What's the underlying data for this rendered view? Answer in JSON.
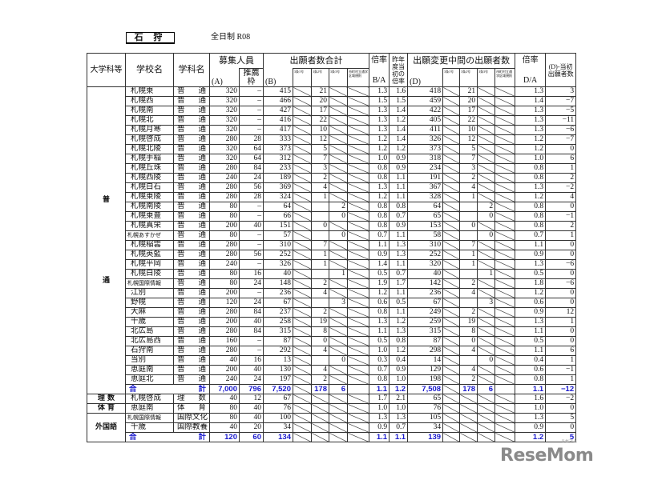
{
  "header": {
    "region": "石 狩",
    "subtitle": "全日制 R08"
  },
  "columns": {
    "category": "大学科等",
    "school": "学校名",
    "dept": "学科名",
    "recruit": "募集人員",
    "a": "(A)",
    "suisen": "推薦枠",
    "applicants_total": "出願者数合計",
    "b": "(B)",
    "sub": [
      "3条1号",
      "3条2号",
      "3条3号",
      "市町村立通学区域規則"
    ],
    "ratio": "倍率",
    "ba": "B/A",
    "prev_ratio": "昨年度当初の倍率",
    "interim": "出願変更中間の出願者数",
    "d": "(D)",
    "ratio2": "倍率",
    "da": "D/A",
    "diff": "(D)-当初出願者数"
  },
  "groups": {
    "futsu_1": "普",
    "futsu_2": "通",
    "risu": "理 数",
    "taiiku": "体 育",
    "gaikokugo": "外国語"
  },
  "total_label": {
    "left": "合",
    "right": "計"
  },
  "futsu_rows": [
    {
      "school": "札幌東",
      "dept": [
        "普",
        "通"
      ],
      "a": "320",
      "s": "–",
      "b": "415",
      "bs": [
        null,
        "21",
        null,
        null
      ],
      "ba": "1.3",
      "prev": "1.6",
      "d": "418",
      "ds": [
        null,
        "21",
        null,
        null
      ],
      "da": "1.3",
      "diff": "3"
    },
    {
      "school": "札幌西",
      "dept": [
        "普",
        "通"
      ],
      "a": "320",
      "s": "–",
      "b": "466",
      "bs": [
        null,
        "20",
        null,
        null
      ],
      "ba": "1.5",
      "prev": "1.5",
      "d": "459",
      "ds": [
        null,
        "20",
        null,
        null
      ],
      "da": "1.4",
      "diff": "−7"
    },
    {
      "school": "札幌南",
      "dept": [
        "普",
        "通"
      ],
      "a": "320",
      "s": "–",
      "b": "427",
      "bs": [
        null,
        "17",
        null,
        null
      ],
      "ba": "1.3",
      "prev": "1.4",
      "d": "422",
      "ds": [
        null,
        "17",
        null,
        null
      ],
      "da": "1.3",
      "diff": "−5"
    },
    {
      "school": "札幌北",
      "dept": [
        "普",
        "通"
      ],
      "a": "320",
      "s": "–",
      "b": "416",
      "bs": [
        null,
        "22",
        null,
        null
      ],
      "ba": "1.3",
      "prev": "1.2",
      "d": "405",
      "ds": [
        null,
        "22",
        null,
        null
      ],
      "da": "1.3",
      "diff": "−11"
    },
    {
      "school": "札幌月寒",
      "dept": [
        "普",
        "通"
      ],
      "a": "320",
      "s": "–",
      "b": "417",
      "bs": [
        null,
        "10",
        null,
        null
      ],
      "ba": "1.3",
      "prev": "1.4",
      "d": "411",
      "ds": [
        null,
        "10",
        null,
        null
      ],
      "da": "1.3",
      "diff": "−6"
    },
    {
      "school": "札幌啓成",
      "dept": [
        "普",
        "通"
      ],
      "a": "280",
      "s": "28",
      "b": "333",
      "bs": [
        null,
        "12",
        null,
        null
      ],
      "ba": "1.2",
      "prev": "1.4",
      "d": "326",
      "ds": [
        null,
        "12",
        null,
        null
      ],
      "da": "1.2",
      "diff": "−7"
    },
    {
      "school": "札幌北陵",
      "dept": [
        "普",
        "通"
      ],
      "a": "320",
      "s": "64",
      "b": "373",
      "bs": [
        null,
        "5",
        null,
        null
      ],
      "ba": "1.2",
      "prev": "1.2",
      "d": "373",
      "ds": [
        null,
        "5",
        null,
        null
      ],
      "da": "1.2",
      "diff": "0"
    },
    {
      "school": "札幌手稲",
      "dept": [
        "普",
        "通"
      ],
      "a": "320",
      "s": "64",
      "b": "312",
      "bs": [
        null,
        "7",
        null,
        null
      ],
      "ba": "1.0",
      "prev": "0.9",
      "d": "318",
      "ds": [
        null,
        "7",
        null,
        null
      ],
      "da": "1.0",
      "diff": "6"
    },
    {
      "school": "札幌丘珠",
      "dept": [
        "普",
        "通"
      ],
      "a": "280",
      "s": "84",
      "b": "233",
      "bs": [
        null,
        "3",
        null,
        null
      ],
      "ba": "0.8",
      "prev": "0.9",
      "d": "234",
      "ds": [
        null,
        "3",
        null,
        null
      ],
      "da": "0.8",
      "diff": "1"
    },
    {
      "school": "札幌西陵",
      "dept": [
        "普",
        "通"
      ],
      "a": "240",
      "s": "24",
      "b": "189",
      "bs": [
        null,
        "2",
        null,
        null
      ],
      "ba": "0.8",
      "prev": "1.1",
      "d": "191",
      "ds": [
        null,
        "2",
        null,
        null
      ],
      "da": "0.8",
      "diff": "2"
    },
    {
      "school": "札幌白石",
      "dept": [
        "普",
        "通"
      ],
      "a": "280",
      "s": "56",
      "b": "369",
      "bs": [
        null,
        "4",
        null,
        null
      ],
      "ba": "1.3",
      "prev": "1.1",
      "d": "367",
      "ds": [
        null,
        "4",
        null,
        null
      ],
      "da": "1.3",
      "diff": "−2"
    },
    {
      "school": "札幌東陵",
      "dept": [
        "普",
        "通"
      ],
      "a": "280",
      "s": "28",
      "b": "324",
      "bs": [
        null,
        "1",
        null,
        null
      ],
      "ba": "1.2",
      "prev": "1.1",
      "d": "328",
      "ds": [
        null,
        "1",
        null,
        null
      ],
      "da": "1.2",
      "diff": "4"
    },
    {
      "school": "札幌南陵",
      "dept": [
        "普",
        "通"
      ],
      "a": "80",
      "s": "–",
      "b": "64",
      "bs": [
        null,
        "",
        "2",
        null
      ],
      "ba": "0.8",
      "prev": "0.8",
      "d": "64",
      "ds": [
        null,
        "",
        "2",
        null
      ],
      "da": "0.8",
      "diff": "0"
    },
    {
      "school": "札幌東豊",
      "dept": [
        "普",
        "通"
      ],
      "a": "80",
      "s": "–",
      "b": "66",
      "bs": [
        null,
        "",
        "0",
        null
      ],
      "ba": "0.8",
      "prev": "0.7",
      "d": "65",
      "ds": [
        null,
        "",
        "0",
        null
      ],
      "da": "0.8",
      "diff": "−1"
    },
    {
      "school": "札幌真栄",
      "dept": [
        "普",
        "通"
      ],
      "a": "200",
      "s": "40",
      "b": "151",
      "bs": [
        null,
        "0",
        null,
        null
      ],
      "ba": "0.8",
      "prev": "0.9",
      "d": "153",
      "ds": [
        null,
        "0",
        null,
        null
      ],
      "da": "0.8",
      "diff": "2"
    },
    {
      "school": "札幌あすかぜ",
      "small": true,
      "dept": [
        "普",
        "通"
      ],
      "a": "80",
      "s": "–",
      "b": "57",
      "bs": [
        null,
        "",
        "0",
        null
      ],
      "ba": "0.7",
      "prev": "1.1",
      "d": "58",
      "ds": [
        null,
        "",
        "0",
        null
      ],
      "da": "0.7",
      "diff": "1"
    },
    {
      "school": "札幌稲雲",
      "dept": [
        "普",
        "通"
      ],
      "a": "280",
      "s": "–",
      "b": "310",
      "bs": [
        null,
        "7",
        null,
        null
      ],
      "ba": "1.1",
      "prev": "1.3",
      "d": "310",
      "ds": [
        null,
        "7",
        null,
        null
      ],
      "da": "1.1",
      "diff": "0"
    },
    {
      "school": "札幌英藍",
      "dept": [
        "普",
        "通"
      ],
      "a": "280",
      "s": "56",
      "b": "252",
      "bs": [
        null,
        "1",
        null,
        null
      ],
      "ba": "0.9",
      "prev": "1.3",
      "d": "252",
      "ds": [
        null,
        "1",
        null,
        null
      ],
      "da": "0.9",
      "diff": "0"
    },
    {
      "school": "札幌平岡",
      "dept": [
        "普",
        "通"
      ],
      "a": "240",
      "s": "–",
      "b": "326",
      "bs": [
        null,
        "1",
        null,
        null
      ],
      "ba": "1.4",
      "prev": "1.1",
      "d": "320",
      "ds": [
        null,
        "1",
        null,
        null
      ],
      "da": "1.3",
      "diff": "−6"
    },
    {
      "school": "札幌白陵",
      "dept": [
        "普",
        "通"
      ],
      "a": "80",
      "s": "16",
      "b": "40",
      "bs": [
        null,
        "",
        "1",
        null
      ],
      "ba": "0.5",
      "prev": "0.7",
      "d": "40",
      "ds": [
        null,
        "",
        "1",
        null
      ],
      "da": "0.5",
      "diff": "0"
    },
    {
      "school": "札幌国際情報",
      "small": true,
      "dept": [
        "普",
        "通"
      ],
      "a": "80",
      "s": "24",
      "b": "148",
      "bs": [
        null,
        "2",
        null,
        null
      ],
      "ba": "1.9",
      "prev": "1.7",
      "d": "142",
      "ds": [
        null,
        "2",
        null,
        null
      ],
      "da": "1.8",
      "diff": "−6"
    },
    {
      "school": "江別",
      "dept": [
        "普",
        "通"
      ],
      "a": "200",
      "s": "–",
      "b": "236",
      "bs": [
        null,
        "4",
        null,
        null
      ],
      "ba": "1.2",
      "prev": "1.1",
      "d": "236",
      "ds": [
        null,
        "4",
        null,
        null
      ],
      "da": "1.2",
      "diff": "0"
    },
    {
      "school": "野幌",
      "dept": [
        "普",
        "通"
      ],
      "a": "120",
      "s": "24",
      "b": "67",
      "bs": [
        null,
        "",
        "3",
        null
      ],
      "ba": "0.6",
      "prev": "0.5",
      "d": "67",
      "ds": [
        null,
        "",
        "3",
        null
      ],
      "da": "0.6",
      "diff": "0"
    },
    {
      "school": "大麻",
      "dept": [
        "普",
        "通"
      ],
      "a": "280",
      "s": "84",
      "b": "237",
      "bs": [
        null,
        "2",
        null,
        null
      ],
      "ba": "0.8",
      "prev": "1.1",
      "d": "249",
      "ds": [
        null,
        "2",
        null,
        null
      ],
      "da": "0.9",
      "diff": "12"
    },
    {
      "school": "千歳",
      "dept": [
        "普",
        "通"
      ],
      "a": "200",
      "s": "40",
      "b": "258",
      "bs": [
        null,
        "19",
        null,
        null
      ],
      "ba": "1.3",
      "prev": "1.2",
      "d": "259",
      "ds": [
        null,
        "19",
        null,
        null
      ],
      "da": "1.3",
      "diff": "1"
    },
    {
      "school": "北広島",
      "dept": [
        "普",
        "通"
      ],
      "a": "280",
      "s": "84",
      "b": "315",
      "bs": [
        null,
        "8",
        null,
        null
      ],
      "ba": "1.1",
      "prev": "1.3",
      "d": "315",
      "ds": [
        null,
        "8",
        null,
        null
      ],
      "da": "1.1",
      "diff": "0"
    },
    {
      "school": "北広島西",
      "dept": [
        "普",
        "通"
      ],
      "a": "160",
      "s": "–",
      "b": "87",
      "bs": [
        null,
        "0",
        null,
        null
      ],
      "ba": "0.5",
      "prev": "0.8",
      "d": "87",
      "ds": [
        null,
        "0",
        null,
        null
      ],
      "da": "0.5",
      "diff": "0"
    },
    {
      "school": "石狩南",
      "dept": [
        "普",
        "通"
      ],
      "a": "280",
      "s": "–",
      "b": "292",
      "bs": [
        null,
        "4",
        null,
        null
      ],
      "ba": "1.0",
      "prev": "1.2",
      "d": "298",
      "ds": [
        null,
        "4",
        null,
        null
      ],
      "da": "1.1",
      "diff": "6"
    },
    {
      "school": "当別",
      "dept": [
        "普",
        "通"
      ],
      "a": "40",
      "s": "16",
      "b": "13",
      "bs": [
        null,
        "",
        "0",
        null
      ],
      "ba": "0.3",
      "prev": "0.4",
      "d": "14",
      "ds": [
        null,
        "",
        "0",
        null
      ],
      "da": "0.4",
      "diff": "1"
    },
    {
      "school": "恵庭南",
      "dept": [
        "普",
        "通"
      ],
      "a": "200",
      "s": "40",
      "b": "130",
      "bs": [
        null,
        "4",
        null,
        null
      ],
      "ba": "0.7",
      "prev": "0.9",
      "d": "129",
      "ds": [
        null,
        "4",
        null,
        null
      ],
      "da": "0.6",
      "diff": "−1"
    },
    {
      "school": "恵庭北",
      "dept": [
        "普",
        "通"
      ],
      "a": "240",
      "s": "24",
      "b": "197",
      "bs": [
        null,
        "2",
        null,
        null
      ],
      "ba": "0.8",
      "prev": "1.0",
      "d": "198",
      "ds": [
        null,
        "2",
        null,
        null
      ],
      "da": "0.8",
      "diff": "1"
    }
  ],
  "futsu_total": {
    "a": "7,000",
    "s": "796",
    "b": "7,520",
    "bs": [
      null,
      "178",
      "6",
      ""
    ],
    "ba": "1.1",
    "prev": "1.2",
    "d": "7,508",
    "ds": [
      null,
      "178",
      "6",
      ""
    ],
    "da": "1.1",
    "diff": "−12"
  },
  "senmon_rows": [
    {
      "group": "risu",
      "school": "札幌啓成",
      "dept": [
        "理",
        "数"
      ],
      "a": "40",
      "s": "12",
      "b": "67",
      "bs": [
        null,
        null,
        null,
        null
      ],
      "ba": "1.7",
      "prev": "2.1",
      "d": "65",
      "ds": [
        null,
        null,
        null,
        null
      ],
      "da": "1.6",
      "diff": "−2"
    },
    {
      "group": "taiiku",
      "school": "恵庭南",
      "dept": [
        "体",
        "育"
      ],
      "a": "80",
      "s": "40",
      "b": "76",
      "bs": [
        null,
        null,
        null,
        null
      ],
      "ba": "1.0",
      "prev": "1.0",
      "d": "76",
      "ds": [
        null,
        null,
        null,
        null
      ],
      "da": "1.0",
      "diff": "0"
    },
    {
      "group": "gaikokugo",
      "school": "札幌国際情報",
      "small": true,
      "dept": [
        "国際文化"
      ],
      "a": "80",
      "s": "40",
      "b": "100",
      "bs": [
        null,
        null,
        null,
        null
      ],
      "ba": "1.3",
      "prev": "1.3",
      "d": "105",
      "ds": [
        null,
        null,
        null,
        null
      ],
      "da": "1.3",
      "diff": "5"
    },
    {
      "group": "gaikokugo",
      "school": "千歳",
      "dept": [
        "国際教養"
      ],
      "a": "40",
      "s": "20",
      "b": "34",
      "bs": [
        null,
        null,
        null,
        null
      ],
      "ba": "0.9",
      "prev": "0.7",
      "d": "34",
      "ds": [
        null,
        null,
        null,
        null
      ],
      "da": "0.9",
      "diff": "0"
    }
  ],
  "gaikokugo_total": {
    "a": "120",
    "s": "60",
    "b": "134",
    "bs": [
      null,
      null,
      null,
      null
    ],
    "ba": "1.1",
    "prev": "1.1",
    "d": "139",
    "ds": [
      null,
      null,
      null,
      null
    ],
    "da": "1.2",
    "diff": "5"
  },
  "logo": {
    "text": "ReseMom",
    "kana": "リセマム"
  },
  "colors": {
    "total_text": "#1a1acc",
    "logo": "#8a8a8a"
  }
}
